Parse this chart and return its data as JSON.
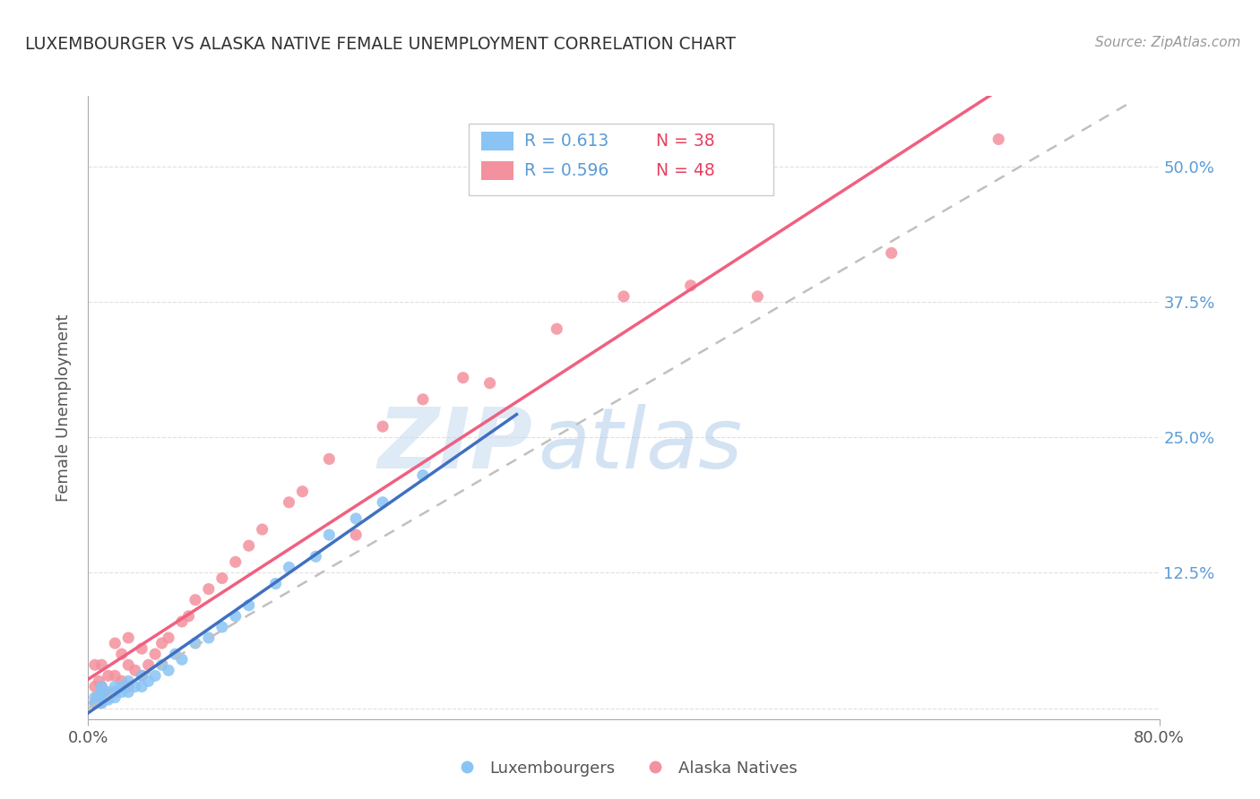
{
  "title": "LUXEMBOURGER VS ALASKA NATIVE FEMALE UNEMPLOYMENT CORRELATION CHART",
  "source": "Source: ZipAtlas.com",
  "ylabel": "Female Unemployment",
  "xlim": [
    0.0,
    0.8
  ],
  "ylim": [
    -0.01,
    0.565
  ],
  "ytick_positions": [
    0.0,
    0.125,
    0.25,
    0.375,
    0.5
  ],
  "ytick_labels": [
    "",
    "12.5%",
    "25.0%",
    "37.5%",
    "50.0%"
  ],
  "watermark_zip": "ZIP",
  "watermark_atlas": "atlas",
  "legend_blue_R": "R = 0.613",
  "legend_blue_N": "N = 38",
  "legend_pink_R": "R = 0.596",
  "legend_pink_N": "N = 48",
  "blue_color": "#89C4F4",
  "pink_color": "#F4919E",
  "blue_line_color": "#4070C0",
  "pink_line_color": "#F06080",
  "dashed_line_color": "#C0C0C0",
  "background_color": "#FFFFFF",
  "grid_color": "#E0E0E0",
  "blue_scatter_x": [
    0.005,
    0.005,
    0.008,
    0.01,
    0.01,
    0.01,
    0.01,
    0.012,
    0.015,
    0.015,
    0.02,
    0.02,
    0.02,
    0.025,
    0.025,
    0.03,
    0.03,
    0.035,
    0.04,
    0.04,
    0.045,
    0.05,
    0.055,
    0.06,
    0.065,
    0.07,
    0.08,
    0.09,
    0.1,
    0.11,
    0.12,
    0.14,
    0.15,
    0.17,
    0.18,
    0.2,
    0.22,
    0.25
  ],
  "blue_scatter_y": [
    0.005,
    0.01,
    0.005,
    0.005,
    0.01,
    0.015,
    0.02,
    0.01,
    0.008,
    0.015,
    0.01,
    0.015,
    0.02,
    0.015,
    0.02,
    0.015,
    0.025,
    0.02,
    0.02,
    0.03,
    0.025,
    0.03,
    0.04,
    0.035,
    0.05,
    0.045,
    0.06,
    0.065,
    0.075,
    0.085,
    0.095,
    0.115,
    0.13,
    0.14,
    0.16,
    0.175,
    0.19,
    0.215
  ],
  "pink_scatter_x": [
    0.005,
    0.005,
    0.005,
    0.007,
    0.008,
    0.01,
    0.01,
    0.01,
    0.012,
    0.015,
    0.015,
    0.02,
    0.02,
    0.02,
    0.025,
    0.025,
    0.03,
    0.03,
    0.03,
    0.035,
    0.04,
    0.04,
    0.045,
    0.05,
    0.055,
    0.06,
    0.07,
    0.075,
    0.08,
    0.09,
    0.1,
    0.11,
    0.12,
    0.13,
    0.15,
    0.16,
    0.18,
    0.2,
    0.22,
    0.25,
    0.28,
    0.3,
    0.35,
    0.4,
    0.45,
    0.5,
    0.6,
    0.68
  ],
  "pink_scatter_y": [
    0.005,
    0.02,
    0.04,
    0.01,
    0.025,
    0.005,
    0.02,
    0.04,
    0.015,
    0.01,
    0.03,
    0.015,
    0.03,
    0.06,
    0.025,
    0.05,
    0.02,
    0.04,
    0.065,
    0.035,
    0.03,
    0.055,
    0.04,
    0.05,
    0.06,
    0.065,
    0.08,
    0.085,
    0.1,
    0.11,
    0.12,
    0.135,
    0.15,
    0.165,
    0.19,
    0.2,
    0.23,
    0.16,
    0.26,
    0.285,
    0.305,
    0.3,
    0.35,
    0.38,
    0.39,
    0.38,
    0.42,
    0.525
  ],
  "blue_line_x_start": 0.0,
  "blue_line_x_end": 0.32,
  "pink_line_x_start": 0.0,
  "pink_line_x_end": 0.78,
  "dash_line_x_start": 0.0,
  "dash_line_x_end": 0.78
}
